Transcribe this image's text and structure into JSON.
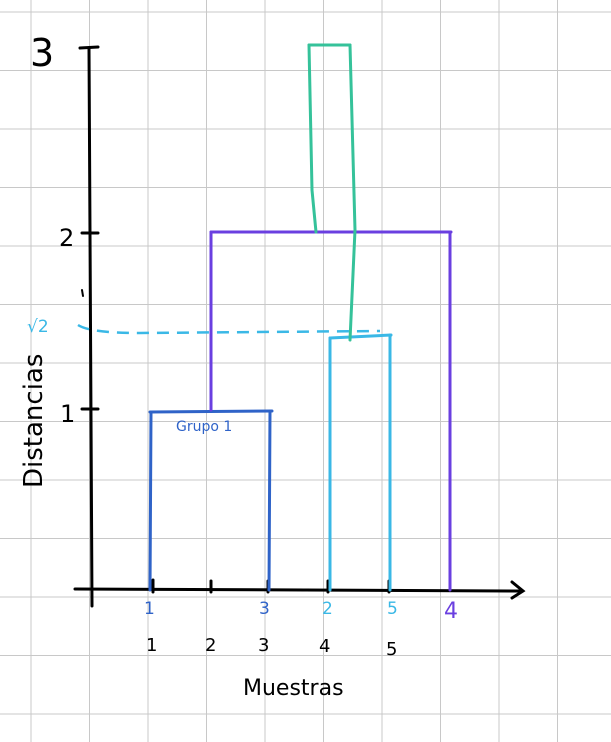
{
  "y_axis": {
    "label": "Distancias",
    "ticks": [
      {
        "value": 1,
        "text": "1"
      },
      {
        "value": 2,
        "text": "2"
      },
      {
        "value": 3,
        "text": "3"
      }
    ],
    "sqrt2_label": "√2"
  },
  "x_axis": {
    "label": "Muestras",
    "order_labels": [
      "1",
      "3",
      "2",
      "5",
      "4"
    ],
    "position_labels": [
      "1",
      "2",
      "3",
      "4",
      "5"
    ]
  },
  "cluster_label": "Grupo 1",
  "colors": {
    "axis": "#000000",
    "grid": "#c8c8c8",
    "group1": "#2f63c8",
    "group25": "#3ab8e6",
    "top": "#6a3fe0",
    "green": "#35c29a",
    "dashed": "#3ab8e6"
  }
}
